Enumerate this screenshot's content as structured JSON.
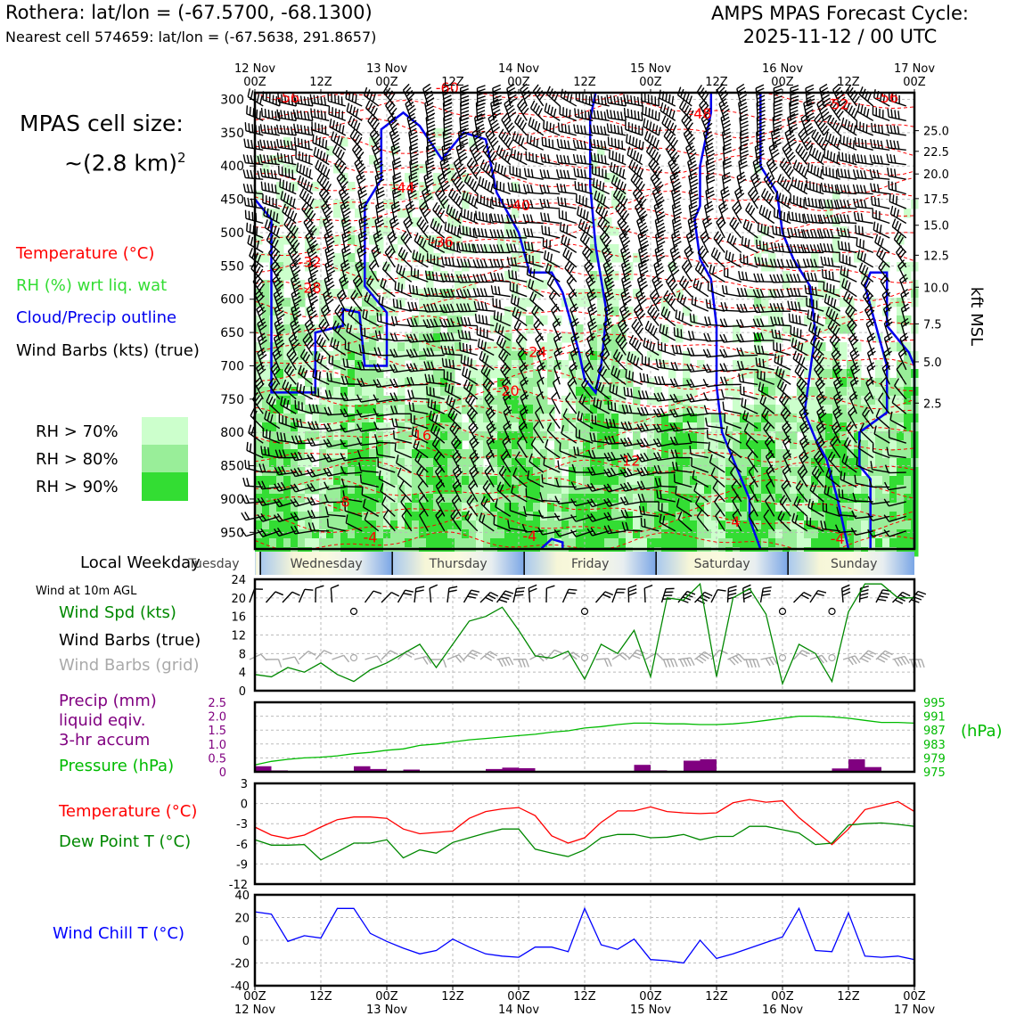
{
  "header": {
    "location_line": "Rothera: lat/lon = (-67.5700, -68.1300)",
    "cell_line": "Nearest cell 574659: lat/lon = (-67.5638, 291.8657)",
    "forecast_title": "AMPS MPAS Forecast Cycle:",
    "forecast_cycle": "2025-11-12 / 00 UTC"
  },
  "left_legend": {
    "cell_size_line1": "MPAS cell size:",
    "cell_size_line2": "~(2.8 km)",
    "cell_size_sup": "2",
    "temperature": "Temperature (°C)",
    "rh": "RH (%) wrt liq. wat",
    "cloud": "Cloud/Precip outline",
    "wind": "Wind Barbs (kts) (true)",
    "rh70": "RH > 70%",
    "rh80": "RH > 80%",
    "rh90": "RH > 90%",
    "weekday_label": "Local Weekday",
    "wind_at": "Wind at 10m AGL",
    "wind_spd": "Wind Spd (kts)",
    "wind_barbs_true": "Wind Barbs (true)",
    "wind_barbs_grid": "Wind Barbs (grid)",
    "precip1": "Precip (mm)",
    "precip2": "liquid eqiv.",
    "precip3": "3-hr accum",
    "pressure": "Pressure (hPa)",
    "temperature2": "Temperature (°C)",
    "dewpoint": "Dew Point T (°C)",
    "windchill": "Wind Chill T (°C)"
  },
  "colors": {
    "temperature": "#ff0000",
    "rh_label": "#33dd33",
    "cloud": "#0000ee",
    "rh70": "#ccffcc",
    "rh80": "#99ee99",
    "rh90": "#33dd33",
    "wind_spd": "#008800",
    "precip": "#800080",
    "pressure": "#00bb00",
    "dewpoint": "#008800",
    "windchill": "#0000ff",
    "grid_barbs": "#aaaaaa"
  },
  "time_axis": {
    "top_ticks": [
      {
        "l1": "12 Nov",
        "l2": "00Z"
      },
      {
        "l1": "",
        "l2": "12Z"
      },
      {
        "l1": "13 Nov",
        "l2": "00Z"
      },
      {
        "l1": "",
        "l2": "12Z"
      },
      {
        "l1": "14 Nov",
        "l2": "00Z"
      },
      {
        "l1": "",
        "l2": "12Z"
      },
      {
        "l1": "15 Nov",
        "l2": "00Z"
      },
      {
        "l1": "",
        "l2": "12Z"
      },
      {
        "l1": "16 Nov",
        "l2": "00Z"
      },
      {
        "l1": "",
        "l2": "12Z"
      },
      {
        "l1": "17 Nov",
        "l2": "00Z"
      }
    ],
    "bottom_ticks": [
      {
        "l1": "00Z",
        "l2": "12 Nov"
      },
      {
        "l1": "12Z",
        "l2": ""
      },
      {
        "l1": "00Z",
        "l2": "13 Nov"
      },
      {
        "l1": "12Z",
        "l2": ""
      },
      {
        "l1": "00Z",
        "l2": "14 Nov"
      },
      {
        "l1": "12Z",
        "l2": ""
      },
      {
        "l1": "00Z",
        "l2": "15 Nov"
      },
      {
        "l1": "12Z",
        "l2": ""
      },
      {
        "l1": "00Z",
        "l2": "16 Nov"
      },
      {
        "l1": "12Z",
        "l2": ""
      },
      {
        "l1": "00Z",
        "l2": "17 Nov"
      }
    ],
    "weekdays": [
      "Tuesday",
      "Wednesday",
      "Thursday",
      "Friday",
      "Saturday",
      "Sunday"
    ]
  },
  "chart_data": [
    {
      "type": "heatmap",
      "title": "",
      "x_range_hours": [
        0,
        120
      ],
      "pressure_ticks": [
        300,
        350,
        400,
        450,
        500,
        550,
        600,
        650,
        700,
        750,
        800,
        850,
        900,
        950
      ],
      "ylim": [
        290,
        975
      ],
      "right_axis_label": "kft MSL",
      "right_ticks": [
        {
          "v": "25.0",
          "p": 347
        },
        {
          "v": "22.5",
          "p": 378
        },
        {
          "v": "20.0",
          "p": 412
        },
        {
          "v": "17.5",
          "p": 449
        },
        {
          "v": "15.0",
          "p": 489
        },
        {
          "v": "12.5",
          "p": 534
        },
        {
          "v": "10.0",
          "p": 582
        },
        {
          "v": "7.5",
          "p": 637
        },
        {
          "v": "5.0",
          "p": 694
        },
        {
          "v": "2.5",
          "p": 756
        }
      ],
      "temperature_labels": [
        {
          "t": "-56",
          "h": 6,
          "p": 298
        },
        {
          "t": "-60",
          "h": 35,
          "p": 283
        },
        {
          "t": "-48",
          "h": 81,
          "p": 322
        },
        {
          "t": "-52",
          "h": 106,
          "p": 308
        },
        {
          "t": "-56",
          "h": 115,
          "p": 298
        },
        {
          "t": "-44",
          "h": 27,
          "p": 433
        },
        {
          "t": "-40",
          "h": 48,
          "p": 460
        },
        {
          "t": "-36",
          "h": 34,
          "p": 515
        },
        {
          "t": "-32",
          "h": 10,
          "p": 545
        },
        {
          "t": "-28",
          "h": 10,
          "p": 584
        },
        {
          "t": "-24",
          "h": 51,
          "p": 680
        },
        {
          "t": "-20",
          "h": 46,
          "p": 738
        },
        {
          "t": "-16",
          "h": 30,
          "p": 805
        },
        {
          "t": "-12",
          "h": 68,
          "p": 843
        },
        {
          "t": "-8",
          "h": 16,
          "p": 905
        },
        {
          "t": "-4",
          "h": 21,
          "p": 958
        },
        {
          "t": "-4",
          "h": 50,
          "p": 956
        },
        {
          "t": "-4",
          "h": 87,
          "p": 935
        },
        {
          "t": "-4",
          "h": 106,
          "p": 960
        }
      ]
    },
    {
      "type": "line",
      "title": "",
      "ylim": [
        0,
        24
      ],
      "yticks": [
        0,
        4,
        8,
        12,
        16,
        20,
        24
      ],
      "series": [
        {
          "name": "Wind Spd (kts)",
          "x": [
            0,
            3,
            6,
            9,
            12,
            15,
            18,
            21,
            24,
            27,
            30,
            33,
            36,
            39,
            42,
            45,
            48,
            51,
            54,
            57,
            60,
            63,
            66,
            69,
            72,
            75,
            78,
            81,
            84,
            87,
            90,
            93,
            96,
            99,
            102,
            105,
            108,
            111,
            114,
            117,
            120
          ],
          "values": [
            3.5,
            3,
            5,
            4,
            6,
            3.5,
            2,
            4.5,
            6,
            8,
            10,
            5,
            10,
            15,
            16,
            18,
            13,
            7.5,
            7,
            8.5,
            2.5,
            10,
            8,
            13,
            3,
            20,
            19.5,
            23,
            3,
            20,
            22,
            16.5,
            1.5,
            10,
            8,
            2,
            17,
            23,
            23,
            20,
            20
          ]
        }
      ]
    },
    {
      "type": "bar",
      "title": "",
      "ylim": [
        0,
        2.5
      ],
      "yticks": [
        0,
        0.5,
        1.0,
        1.5,
        2.0,
        2.5
      ],
      "precip": {
        "x": [
          0,
          3,
          6,
          9,
          12,
          15,
          18,
          21,
          24,
          27,
          30,
          33,
          36,
          39,
          42,
          45,
          48,
          51,
          54,
          57,
          60,
          63,
          66,
          69,
          72,
          75,
          78,
          81,
          84,
          87,
          90,
          93,
          96,
          99,
          102,
          105,
          108,
          111,
          114,
          117,
          120
        ],
        "values": [
          0.2,
          0.05,
          0,
          0,
          0,
          0,
          0.2,
          0.1,
          0,
          0.08,
          0,
          0,
          0,
          0,
          0.1,
          0.15,
          0.13,
          0,
          0,
          0,
          0,
          0,
          0,
          0.25,
          0.05,
          0,
          0.4,
          0.45,
          0,
          0,
          0,
          0,
          0,
          0,
          0,
          0.12,
          0.45,
          0.17,
          0,
          0,
          0
        ]
      },
      "pressure_ylim": [
        975,
        995
      ],
      "pressure_ticks": [
        975,
        979,
        983,
        987,
        991,
        995
      ],
      "pressure_axis_label": "(hPa)",
      "pressure": {
        "x": [
          0,
          3,
          6,
          9,
          12,
          15,
          18,
          21,
          24,
          27,
          30,
          33,
          36,
          39,
          42,
          45,
          48,
          51,
          54,
          57,
          60,
          63,
          66,
          69,
          72,
          75,
          78,
          81,
          84,
          87,
          90,
          93,
          96,
          99,
          102,
          105,
          108,
          111,
          114,
          117,
          120
        ],
        "values": [
          977,
          978,
          978.6,
          979,
          979.2,
          979.6,
          980.2,
          980.6,
          981.2,
          981.6,
          982.6,
          983,
          983.6,
          984.2,
          984.6,
          985,
          985.4,
          985.8,
          986.4,
          986.8,
          987.6,
          988,
          988.6,
          989,
          989,
          988.8,
          988.8,
          988.6,
          988.6,
          988.8,
          989.2,
          989.8,
          990.4,
          991,
          991,
          990.8,
          990.4,
          989.8,
          989.2,
          989.2,
          989
        ]
      }
    },
    {
      "type": "line",
      "title": "",
      "ylim": [
        -12,
        3
      ],
      "yticks": [
        3,
        0,
        -3,
        -6,
        -9,
        -12
      ],
      "series": [
        {
          "name": "Temperature (°C)",
          "x": [
            0,
            3,
            6,
            9,
            12,
            15,
            18,
            21,
            24,
            27,
            30,
            33,
            36,
            39,
            42,
            45,
            48,
            51,
            54,
            57,
            60,
            63,
            66,
            69,
            72,
            75,
            78,
            81,
            84,
            87,
            90,
            93,
            96,
            99,
            102,
            105,
            108,
            111,
            114,
            117,
            120
          ],
          "values": [
            -3.5,
            -4.7,
            -5.2,
            -4.7,
            -3.5,
            -2.4,
            -2,
            -2,
            -2.2,
            -3.8,
            -4.5,
            -4.3,
            -4.1,
            -2.2,
            -1.2,
            -0.8,
            -0.6,
            -1.8,
            -4.8,
            -5.9,
            -5.1,
            -2.8,
            -1.1,
            -1.1,
            -0.5,
            -1.2,
            -1.4,
            -1.5,
            -1.4,
            0.1,
            0.6,
            0.2,
            0.4,
            -2.1,
            -4.1,
            -6.1,
            -3.8,
            -0.9,
            -0.3,
            0.3,
            -1.2
          ]
        },
        {
          "name": "Dew Point T (°C)",
          "x": [
            0,
            3,
            6,
            9,
            12,
            15,
            18,
            21,
            24,
            27,
            30,
            33,
            36,
            39,
            42,
            45,
            48,
            51,
            54,
            57,
            60,
            63,
            66,
            69,
            72,
            75,
            78,
            81,
            84,
            87,
            90,
            93,
            96,
            99,
            102,
            105,
            108,
            111,
            114,
            117,
            120
          ],
          "values": [
            -5.4,
            -6.2,
            -6.2,
            -6.1,
            -8.4,
            -7.2,
            -5.9,
            -5.9,
            -5.4,
            -8.1,
            -6.9,
            -7.4,
            -5.8,
            -5.1,
            -4.4,
            -3.8,
            -3.8,
            -6.8,
            -7.4,
            -7.9,
            -6.9,
            -5.1,
            -4.6,
            -4.6,
            -5.1,
            -5,
            -4.6,
            -5.4,
            -4.9,
            -4.9,
            -3.4,
            -3.4,
            -3.9,
            -4.4,
            -6.1,
            -5.9,
            -3.2,
            -3,
            -2.9,
            -3.1,
            -3.4
          ]
        }
      ]
    },
    {
      "type": "line",
      "title": "",
      "ylim": [
        -40,
        40
      ],
      "yticks": [
        40,
        20,
        0,
        -20,
        -40
      ],
      "series": [
        {
          "name": "Wind Chill T (°C)",
          "x": [
            0,
            3,
            6,
            9,
            12,
            15,
            18,
            21,
            24,
            27,
            30,
            33,
            36,
            39,
            42,
            45,
            48,
            51,
            54,
            57,
            60,
            63,
            66,
            69,
            72,
            75,
            78,
            81,
            84,
            87,
            90,
            93,
            96,
            99,
            102,
            105,
            108,
            111,
            114,
            117,
            120
          ],
          "values": [
            25,
            23,
            -1,
            4,
            2,
            28,
            28,
            6,
            -1,
            -7,
            -12,
            -9,
            1,
            -6,
            -12,
            -14,
            -15,
            -6,
            -6,
            -10,
            28,
            -4,
            -8,
            1,
            -17,
            -18,
            -20,
            0,
            -16,
            -12,
            -7,
            -2,
            3,
            28,
            -9,
            -10,
            24,
            -14,
            -15,
            -14,
            -17
          ]
        }
      ]
    }
  ]
}
